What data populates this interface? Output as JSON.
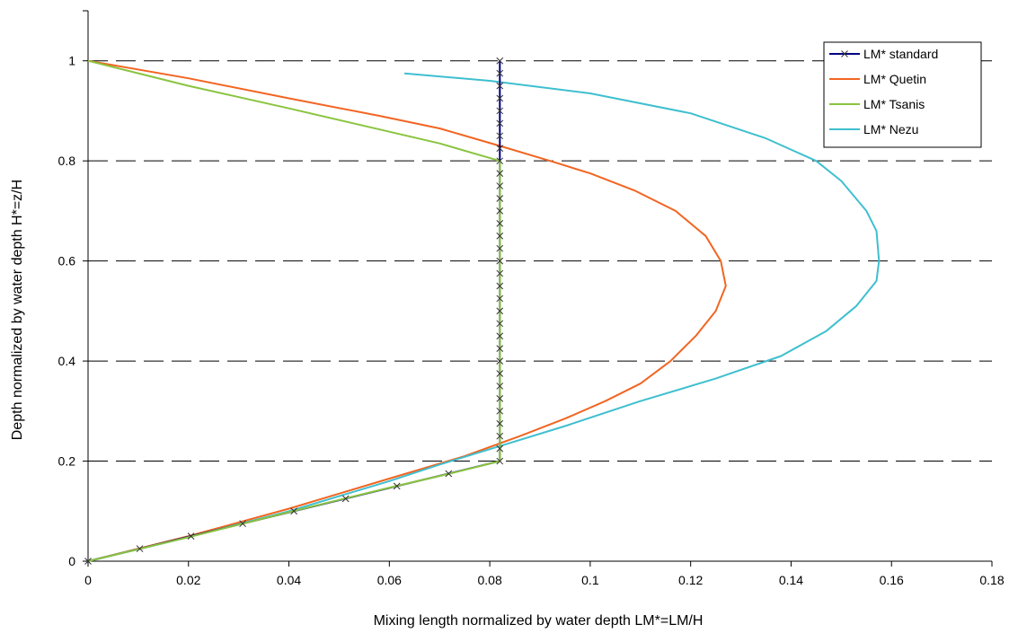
{
  "chart_data": {
    "type": "line",
    "title": "",
    "xlabel": "Mixing length normalized by water depth  LM*=LM/H",
    "ylabel": "Depth normalized by water depth  H*=z/H",
    "xlim": [
      0,
      0.18
    ],
    "ylim": [
      0,
      1.1
    ],
    "x_ticks": [
      "0",
      "0.02",
      "0.04",
      "0.06",
      "0.08",
      "0.1",
      "0.12",
      "0.14",
      "0.16",
      "0.18"
    ],
    "y_ticks": [
      "0",
      "0.2",
      "0.4",
      "0.6",
      "0.8",
      "1"
    ],
    "grid": "horizontal dashed at 0.2, 0.4, 0.6, 0.8, 1",
    "legend_position": "top-right",
    "series": [
      {
        "name": "LM* standard",
        "color": "#000080",
        "marker": "x",
        "points": [
          [
            0,
            0
          ],
          [
            0.0103,
            0.025
          ],
          [
            0.0205,
            0.05
          ],
          [
            0.0308,
            0.075
          ],
          [
            0.041,
            0.1
          ],
          [
            0.0513,
            0.125
          ],
          [
            0.0615,
            0.15
          ],
          [
            0.0718,
            0.175
          ],
          [
            0.082,
            0.2
          ],
          [
            0.082,
            0.225
          ],
          [
            0.082,
            0.25
          ],
          [
            0.082,
            0.275
          ],
          [
            0.082,
            0.3
          ],
          [
            0.082,
            0.325
          ],
          [
            0.082,
            0.35
          ],
          [
            0.082,
            0.375
          ],
          [
            0.082,
            0.4
          ],
          [
            0.082,
            0.425
          ],
          [
            0.082,
            0.45
          ],
          [
            0.082,
            0.475
          ],
          [
            0.082,
            0.5
          ],
          [
            0.082,
            0.525
          ],
          [
            0.082,
            0.55
          ],
          [
            0.082,
            0.575
          ],
          [
            0.082,
            0.6
          ],
          [
            0.082,
            0.625
          ],
          [
            0.082,
            0.65
          ],
          [
            0.082,
            0.675
          ],
          [
            0.082,
            0.7
          ],
          [
            0.082,
            0.725
          ],
          [
            0.082,
            0.75
          ],
          [
            0.082,
            0.775
          ],
          [
            0.082,
            0.8
          ],
          [
            0.082,
            0.825
          ],
          [
            0.082,
            0.85
          ],
          [
            0.082,
            0.875
          ],
          [
            0.082,
            0.9
          ],
          [
            0.082,
            0.925
          ],
          [
            0.082,
            0.95
          ],
          [
            0.082,
            0.975
          ],
          [
            0.082,
            1.0
          ]
        ]
      },
      {
        "name": "LM* Quetin",
        "color": "#f26522",
        "marker": "none",
        "points": [
          [
            0,
            0
          ],
          [
            0.02,
            0.05
          ],
          [
            0.04,
            0.105
          ],
          [
            0.06,
            0.165
          ],
          [
            0.075,
            0.21
          ],
          [
            0.086,
            0.25
          ],
          [
            0.095,
            0.285
          ],
          [
            0.103,
            0.32
          ],
          [
            0.11,
            0.355
          ],
          [
            0.116,
            0.4
          ],
          [
            0.121,
            0.45
          ],
          [
            0.125,
            0.5
          ],
          [
            0.127,
            0.55
          ],
          [
            0.126,
            0.6
          ],
          [
            0.123,
            0.65
          ],
          [
            0.117,
            0.7
          ],
          [
            0.109,
            0.74
          ],
          [
            0.1,
            0.775
          ],
          [
            0.092,
            0.8
          ],
          [
            0.082,
            0.83
          ],
          [
            0.07,
            0.865
          ],
          [
            0.058,
            0.89
          ],
          [
            0.04,
            0.925
          ],
          [
            0.02,
            0.965
          ],
          [
            0,
            1.0
          ]
        ]
      },
      {
        "name": "LM* Tsanis",
        "color": "#8ac43f",
        "marker": "none",
        "points": [
          [
            0,
            0
          ],
          [
            0.02,
            0.048
          ],
          [
            0.04,
            0.098
          ],
          [
            0.06,
            0.147
          ],
          [
            0.072,
            0.175
          ],
          [
            0.082,
            0.2
          ],
          [
            0.082,
            0.3
          ],
          [
            0.082,
            0.4
          ],
          [
            0.082,
            0.5
          ],
          [
            0.082,
            0.6
          ],
          [
            0.082,
            0.7
          ],
          [
            0.082,
            0.8
          ],
          [
            0.07,
            0.835
          ],
          [
            0.055,
            0.87
          ],
          [
            0.04,
            0.905
          ],
          [
            0.02,
            0.95
          ],
          [
            0,
            1.0
          ]
        ]
      },
      {
        "name": "LM* Nezu",
        "color": "#3fbfcf",
        "marker": "none",
        "points": [
          [
            0,
            0
          ],
          [
            0.02,
            0.048
          ],
          [
            0.04,
            0.1
          ],
          [
            0.06,
            0.16
          ],
          [
            0.07,
            0.193
          ],
          [
            0.082,
            0.23
          ],
          [
            0.095,
            0.27
          ],
          [
            0.11,
            0.32
          ],
          [
            0.125,
            0.365
          ],
          [
            0.138,
            0.41
          ],
          [
            0.147,
            0.46
          ],
          [
            0.153,
            0.51
          ],
          [
            0.157,
            0.56
          ],
          [
            0.1575,
            0.6
          ],
          [
            0.157,
            0.66
          ],
          [
            0.155,
            0.7
          ],
          [
            0.15,
            0.76
          ],
          [
            0.145,
            0.8
          ],
          [
            0.135,
            0.845
          ],
          [
            0.12,
            0.895
          ],
          [
            0.1,
            0.935
          ],
          [
            0.08,
            0.96
          ],
          [
            0.063,
            0.975
          ]
        ]
      }
    ]
  }
}
